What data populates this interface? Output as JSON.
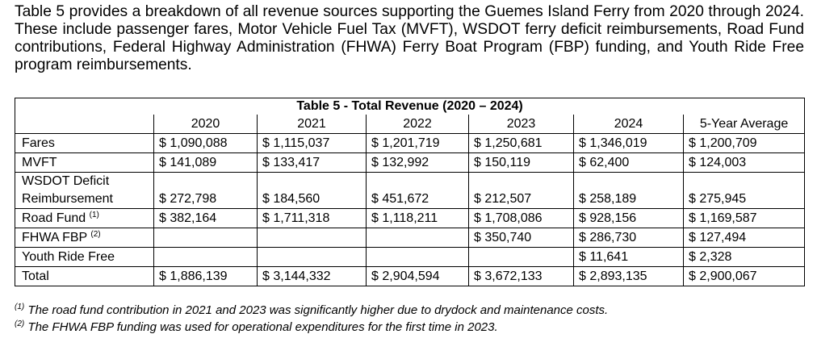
{
  "paragraph": "Table 5 provides a breakdown of all revenue sources supporting the Guemes Island Ferry from 2020 through 2024. These include passenger fares, Motor Vehicle Fuel Tax (MVFT), WSDOT ferry deficit reimbursements, Road Fund contributions, Federal Highway Administration (FHWA) Ferry Boat Program (FBP) funding, and Youth Ride Free program reimbursements.",
  "table": {
    "title": "Table 5 - Total Revenue (2020 – 2024)",
    "columns": [
      "2020",
      "2021",
      "2022",
      "2023",
      "2024",
      "5-Year Average"
    ],
    "rows": [
      {
        "label": "Fares",
        "cells": [
          "$ 1,090,088",
          "$ 1,115,037",
          "$ 1,201,719",
          "$ 1,250,681",
          "$ 1,346,019",
          "$ 1,200,709"
        ]
      },
      {
        "label": "MVFT",
        "cells": [
          "$ 141,089",
          "$ 133,417",
          "$ 132,992",
          "$ 150,119",
          "$ 62,400",
          "$ 124,003"
        ]
      },
      {
        "label": "WSDOT Deficit Reimbursement",
        "cells": [
          "$ 272,798",
          "$ 184,560",
          "$ 451,672",
          "$ 212,507",
          "$ 258,189",
          "$ 275,945"
        ]
      },
      {
        "label": "Road Fund",
        "note": "(1)",
        "cells": [
          "$ 382,164",
          "$ 1,711,318",
          "$ 1,118,211",
          "$ 1,708,086",
          "$ 928,156",
          "$ 1,169,587"
        ]
      },
      {
        "label": "FHWA FBP",
        "note": "(2)",
        "cells": [
          null,
          null,
          null,
          "$ 350,740",
          "$ 286,730",
          "$ 127,494"
        ]
      },
      {
        "label": "Youth Ride Free",
        "cells": [
          null,
          null,
          null,
          null,
          "$ 11,641",
          "$ 2,328"
        ]
      },
      {
        "label": "Total",
        "cells": [
          "$ 1,886,139",
          "$ 3,144,332",
          "$ 2,904,594",
          "$ 3,672,133",
          "$ 2,893,135",
          "$ 2,900,067"
        ]
      }
    ]
  },
  "footnotes": [
    {
      "marker": "(1)",
      "text": "The road fund contribution in 2021 and 2023 was significantly higher due to drydock and maintenance costs."
    },
    {
      "marker": "(2)",
      "text": "The FHWA FBP funding was used for operational expenditures for the first time in 2023."
    }
  ]
}
